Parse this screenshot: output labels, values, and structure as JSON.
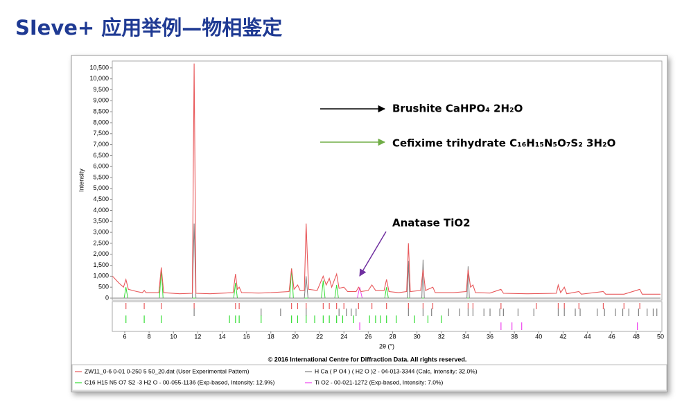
{
  "slide": {
    "title": "SIeve+ 应用举例—物相鉴定"
  },
  "chart_data": {
    "type": "line",
    "xlabel": "2θ (°)",
    "ylabel": "Intensity",
    "footnote": "© 2016 International Centre for Diffraction Data. All rights reserved.",
    "xlim": [
      5,
      50
    ],
    "ylim": [
      0,
      10750
    ],
    "xticks": [
      6,
      8,
      10,
      12,
      14,
      16,
      18,
      20,
      22,
      24,
      26,
      28,
      30,
      32,
      34,
      36,
      38,
      40,
      42,
      44,
      46,
      48,
      50
    ],
    "yticks": [
      0,
      500,
      {
        "value": 1000,
        "label": "1,000"
      },
      {
        "value": 1500,
        "label": "1,500"
      },
      {
        "value": 2000,
        "label": "2,000"
      },
      {
        "value": 2500,
        "label": "2,500"
      },
      {
        "value": 3000,
        "label": "3,000"
      },
      {
        "value": 3500,
        "label": "3,500"
      },
      {
        "value": 4000,
        "label": "4,000"
      },
      {
        "value": 4500,
        "label": "4,500"
      },
      {
        "value": 5000,
        "label": "5,000"
      },
      {
        "value": 5500,
        "label": "5,500"
      },
      {
        "value": 6000,
        "label": "6,000"
      },
      {
        "value": 6500,
        "label": "6,500"
      },
      {
        "value": 7000,
        "label": "7,000"
      },
      {
        "value": 7500,
        "label": "7,500"
      },
      {
        "value": 8000,
        "label": "8,000"
      },
      {
        "value": 8500,
        "label": "8,500"
      },
      {
        "value": 9000,
        "label": "9,000"
      },
      {
        "value": 9500,
        "label": "9,500"
      },
      {
        "value": 10000,
        "label": "10,000"
      },
      {
        "value": 10500,
        "label": "10,500"
      }
    ],
    "annotations": [
      {
        "text": "Brushite CaHPO₄ 2H₂O",
        "color": "#000000"
      },
      {
        "text": "Cefixime trihydrate C₁₆H₁₅N₅O₇S₂ 3H₂O",
        "color": "#70ad47"
      },
      {
        "text": "Anatase TiO2",
        "color": "#7030a0"
      }
    ],
    "series": [
      {
        "name": "ZW11_0-6 0-01 0-250 5 50_20.dat (User Experimental Pattern)",
        "color": "#e8585a",
        "x": [
          5.0,
          5.5,
          5.9,
          6.1,
          6.3,
          7.0,
          7.45,
          7.6,
          7.75,
          8.8,
          9.0,
          9.2,
          10.5,
          11.55,
          11.7,
          11.85,
          13.0,
          14.9,
          15.1,
          15.25,
          15.4,
          15.6,
          17.0,
          18.0,
          19.5,
          19.7,
          19.9,
          20.2,
          20.4,
          20.75,
          20.9,
          21.1,
          21.8,
          22.3,
          22.55,
          22.8,
          23.0,
          23.4,
          23.6,
          24.0,
          24.3,
          25.0,
          25.2,
          25.4,
          26.0,
          26.3,
          26.6,
          27.3,
          27.5,
          27.7,
          28.5,
          29.15,
          29.3,
          29.45,
          30.3,
          30.5,
          30.7,
          31.3,
          31.5,
          33.0,
          34.05,
          34.2,
          34.4,
          34.6,
          34.8,
          36.0,
          36.9,
          37.1,
          39.0,
          41.45,
          41.6,
          41.8,
          42.1,
          42.3,
          43.3,
          43.5,
          45.3,
          45.5,
          47.0,
          48.3,
          48.5,
          50.0
        ],
        "values": [
          1000,
          700,
          500,
          850,
          400,
          300,
          250,
          350,
          250,
          250,
          1400,
          250,
          200,
          220,
          10700,
          220,
          200,
          250,
          1100,
          400,
          500,
          250,
          230,
          250,
          300,
          1350,
          400,
          600,
          350,
          350,
          3400,
          400,
          350,
          1000,
          600,
          900,
          500,
          1100,
          450,
          500,
          300,
          300,
          500,
          300,
          350,
          600,
          350,
          350,
          850,
          300,
          250,
          300,
          2500,
          300,
          350,
          1300,
          350,
          500,
          250,
          250,
          300,
          1300,
          500,
          600,
          250,
          230,
          400,
          220,
          200,
          220,
          600,
          250,
          500,
          200,
          300,
          180,
          300,
          180,
          180,
          400,
          180,
          180
        ],
        "sticks": [
          6.1,
          7.6,
          9.0,
          11.7,
          15.1,
          15.4,
          19.7,
          20.2,
          20.9,
          22.3,
          22.8,
          23.4,
          24.0,
          25.2,
          26.3,
          27.5,
          29.3,
          30.5,
          31.3,
          34.2,
          34.6,
          36.9,
          39.8,
          41.6,
          42.1,
          43.3,
          45.3,
          47.0,
          48.3
        ]
      },
      {
        "name": "H Ca ( P O4 ) ( H2 O )2 - 04-013-3344 (Calc, Intensity: 32.0%)",
        "color": "#808080",
        "x": [
          5,
          11.55,
          11.7,
          11.85,
          20.75,
          20.9,
          21.05,
          29.2,
          29.3,
          29.4,
          30.4,
          30.5,
          30.6,
          34.1,
          34.2,
          34.3,
          50
        ],
        "values": [
          0,
          0,
          3400,
          0,
          0,
          1000,
          0,
          0,
          1700,
          0,
          0,
          1750,
          0,
          0,
          1450,
          0,
          0
        ],
        "sticks": [
          11.7,
          17.2,
          18.8,
          20.9,
          23.6,
          24.2,
          24.6,
          25.0,
          29.3,
          30.5,
          31.2,
          32.6,
          33.5,
          34.2,
          34.6,
          35.5,
          36.0,
          36.8,
          37.1,
          38.3,
          39.6,
          41.6,
          42.1,
          43.0,
          43.4,
          44.8,
          45.4,
          46.3,
          46.9,
          47.4,
          48.2,
          48.9,
          49.4,
          49.7
        ]
      },
      {
        "name": "C16 H15 N5 O7 S2 ·3 H2 O - 00-055-1136 (Exp-based, Intensity: 12.9%)",
        "color": "#33dd33",
        "x": [
          5,
          5.95,
          6.1,
          6.25,
          8.85,
          9.0,
          9.15,
          14.95,
          15.1,
          15.25,
          19.55,
          19.7,
          19.85,
          22.15,
          22.3,
          22.45,
          23.25,
          23.4,
          23.55,
          27.35,
          27.5,
          27.65,
          50
        ],
        "values": [
          0,
          0,
          500,
          0,
          0,
          1300,
          0,
          0,
          700,
          0,
          0,
          1350,
          0,
          0,
          800,
          0,
          0,
          600,
          0,
          0,
          500,
          0,
          0
        ],
        "sticks": [
          6.1,
          7.6,
          9.0,
          14.6,
          15.1,
          15.4,
          17.2,
          19.7,
          20.2,
          20.9,
          21.6,
          22.3,
          22.8,
          23.4,
          23.9,
          24.8,
          26.1,
          26.6,
          27.0,
          27.5,
          28.3,
          29.8,
          30.9,
          32.0
        ]
      },
      {
        "name": "Ti O2 - 00-021-1272 (Exp-based, Intensity: 7.0%)",
        "color": "#ee44ee",
        "x": [
          5,
          25.1,
          25.3,
          25.5,
          50
        ],
        "values": [
          0,
          0,
          500,
          0,
          0
        ],
        "sticks": [
          25.3,
          36.9,
          37.8,
          38.6,
          48.1
        ]
      }
    ]
  }
}
